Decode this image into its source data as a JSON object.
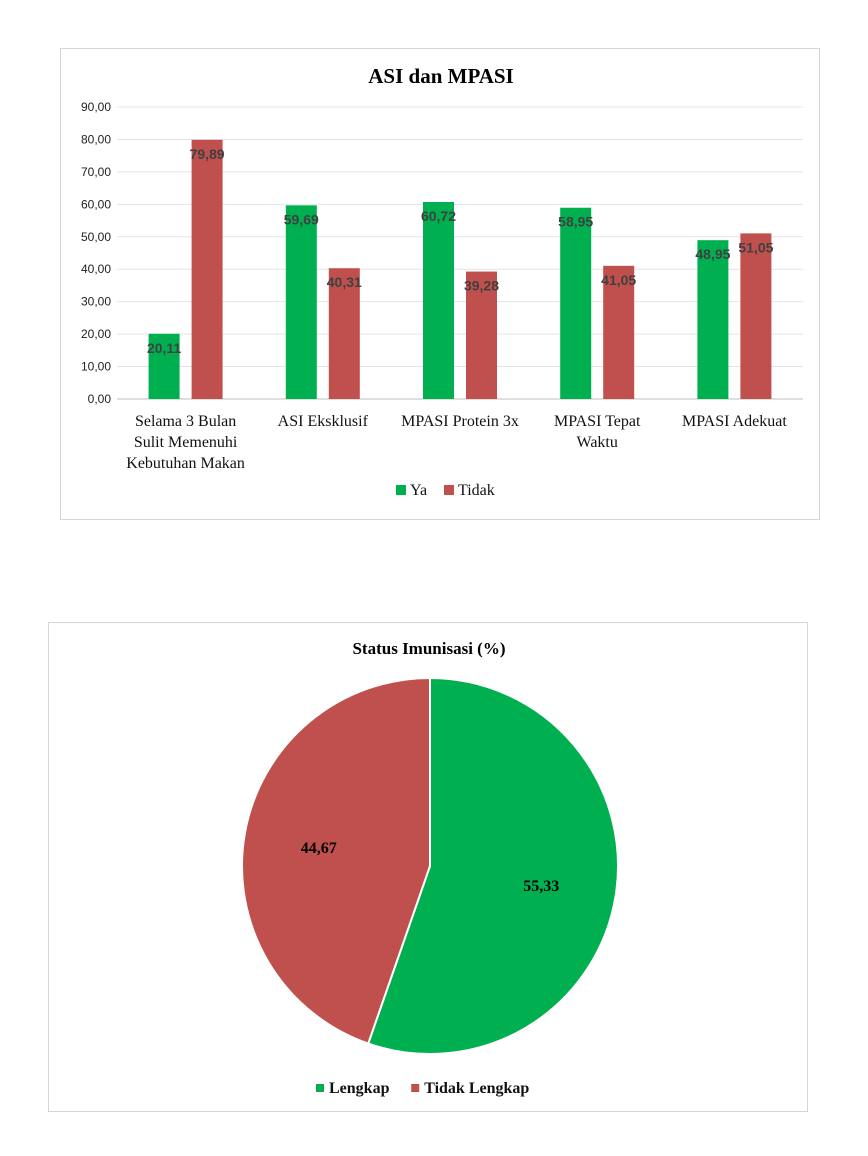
{
  "chart_data": [
    {
      "type": "bar",
      "title": "ASI dan MPASI",
      "xlabel": "",
      "ylabel": "",
      "ylim": [
        0,
        90
      ],
      "yticks": [
        "0,00",
        "10,00",
        "20,00",
        "30,00",
        "40,00",
        "50,00",
        "60,00",
        "70,00",
        "80,00",
        "90,00"
      ],
      "categories": [
        [
          "Selama 3 Bulan",
          "Sulit Memenuhi",
          "Kebutuhan Makan"
        ],
        [
          "ASI Eksklusif"
        ],
        [
          "MPASI Protein 3x"
        ],
        [
          "MPASI Tepat",
          "Waktu"
        ],
        [
          "MPASI Adekuat"
        ]
      ],
      "series": [
        {
          "name": "Ya",
          "color": "#00b050",
          "values": [
            20.11,
            59.69,
            60.72,
            58.95,
            48.95
          ],
          "labels": [
            "20,11",
            "59,69",
            "60,72",
            "58,95",
            "48,95"
          ]
        },
        {
          "name": "Tidak",
          "color": "#c0504d",
          "values": [
            79.89,
            40.31,
            39.28,
            41.05,
            51.05
          ],
          "labels": [
            "79,89",
            "40,31",
            "39,28",
            "41,05",
            "51,05"
          ]
        }
      ],
      "grid": true,
      "legend": "bottom"
    },
    {
      "type": "pie",
      "title": "Status Imunisasi (%)",
      "slices": [
        {
          "name": "Lengkap",
          "value": 55.33,
          "label": "55,33",
          "color": "#00b050"
        },
        {
          "name": "Tidak Lengkap",
          "value": 44.67,
          "label": "44,67",
          "color": "#c0504d"
        }
      ],
      "legend": "bottom"
    }
  ]
}
